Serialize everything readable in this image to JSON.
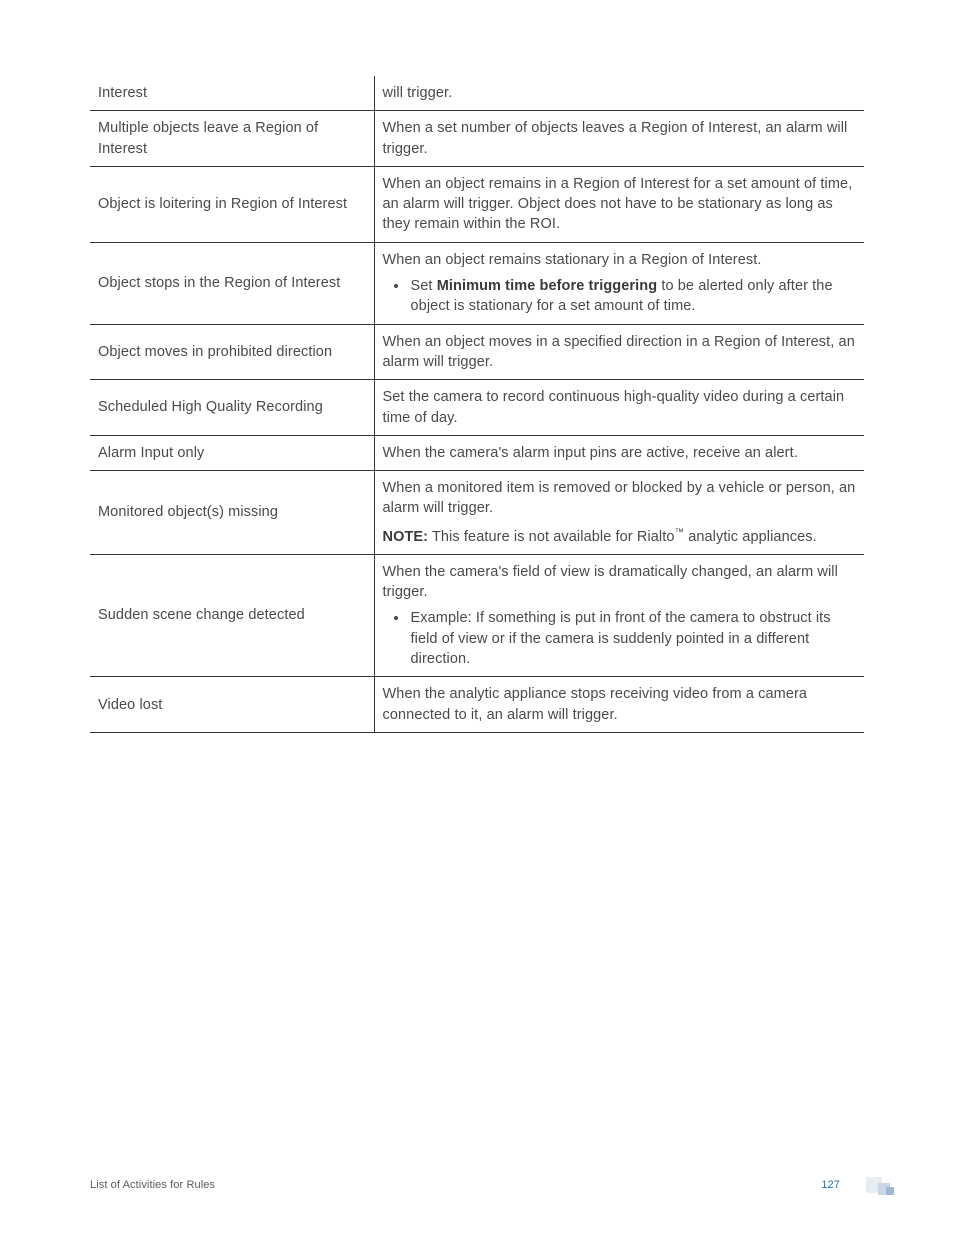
{
  "table": {
    "rows": [
      {
        "label": "Interest",
        "desc": [
          {
            "type": "p",
            "text": "will trigger."
          }
        ]
      },
      {
        "label": "Multiple objects leave a Region of Interest",
        "desc": [
          {
            "type": "p",
            "text": "When a set number of objects leaves a Region of Interest, an alarm will trigger."
          }
        ]
      },
      {
        "label": "Object is loitering in Region of Interest",
        "desc": [
          {
            "type": "p",
            "text": "When an object remains in a Region of Interest for a set amount of time, an alarm will trigger. Object does not have to be stationary as long as they remain within the ROI."
          }
        ]
      },
      {
        "label": "Object stops in the Region of Interest",
        "desc": [
          {
            "type": "p",
            "text": "When an object remains stationary in a Region of Interest."
          },
          {
            "type": "ul",
            "items": [
              {
                "parts": [
                  {
                    "text": "Set "
                  },
                  {
                    "text": "Minimum time before triggering",
                    "bold": true
                  },
                  {
                    "text": " to be alerted only after the object is stationary for a set amount of time."
                  }
                ]
              }
            ]
          }
        ]
      },
      {
        "label": "Object moves in prohibited direction",
        "desc": [
          {
            "type": "p",
            "text": "When an object moves in a specified direction in a Region of Interest, an alarm will trigger."
          }
        ]
      },
      {
        "label": "Scheduled High Quality Recording",
        "desc": [
          {
            "type": "p",
            "text": "Set the camera to record continuous high-quality video during a certain time of day."
          }
        ]
      },
      {
        "label": "Alarm Input only",
        "desc": [
          {
            "type": "p",
            "text": "When the camera's alarm input pins are active, receive an alert."
          }
        ]
      },
      {
        "label": "Monitored object(s) missing",
        "desc": [
          {
            "type": "p",
            "text": "When a monitored item is removed or blocked by a vehicle or person, an alarm will trigger."
          },
          {
            "type": "p",
            "parts": [
              {
                "text": "NOTE:",
                "bold": true
              },
              {
                "text": " This feature is not available for Rialto"
              },
              {
                "text": "™",
                "sup": true
              },
              {
                "text": " analytic appliances."
              }
            ]
          }
        ]
      },
      {
        "label": "Sudden scene change detected",
        "desc": [
          {
            "type": "p",
            "text": "When the camera's field of view is dramatically changed, an alarm will trigger."
          },
          {
            "type": "ul",
            "items": [
              {
                "text": "Example: If something is put in front of the camera to obstruct its field of view or if the camera is suddenly pointed in a different direction."
              }
            ]
          }
        ]
      },
      {
        "label": "Video lost",
        "desc": [
          {
            "type": "p",
            "text": "When the analytic appliance stops receiving video from a camera connected to it, an alarm will trigger."
          }
        ]
      }
    ]
  },
  "footer": {
    "title": "List of Activities for Rules",
    "page": "127"
  }
}
